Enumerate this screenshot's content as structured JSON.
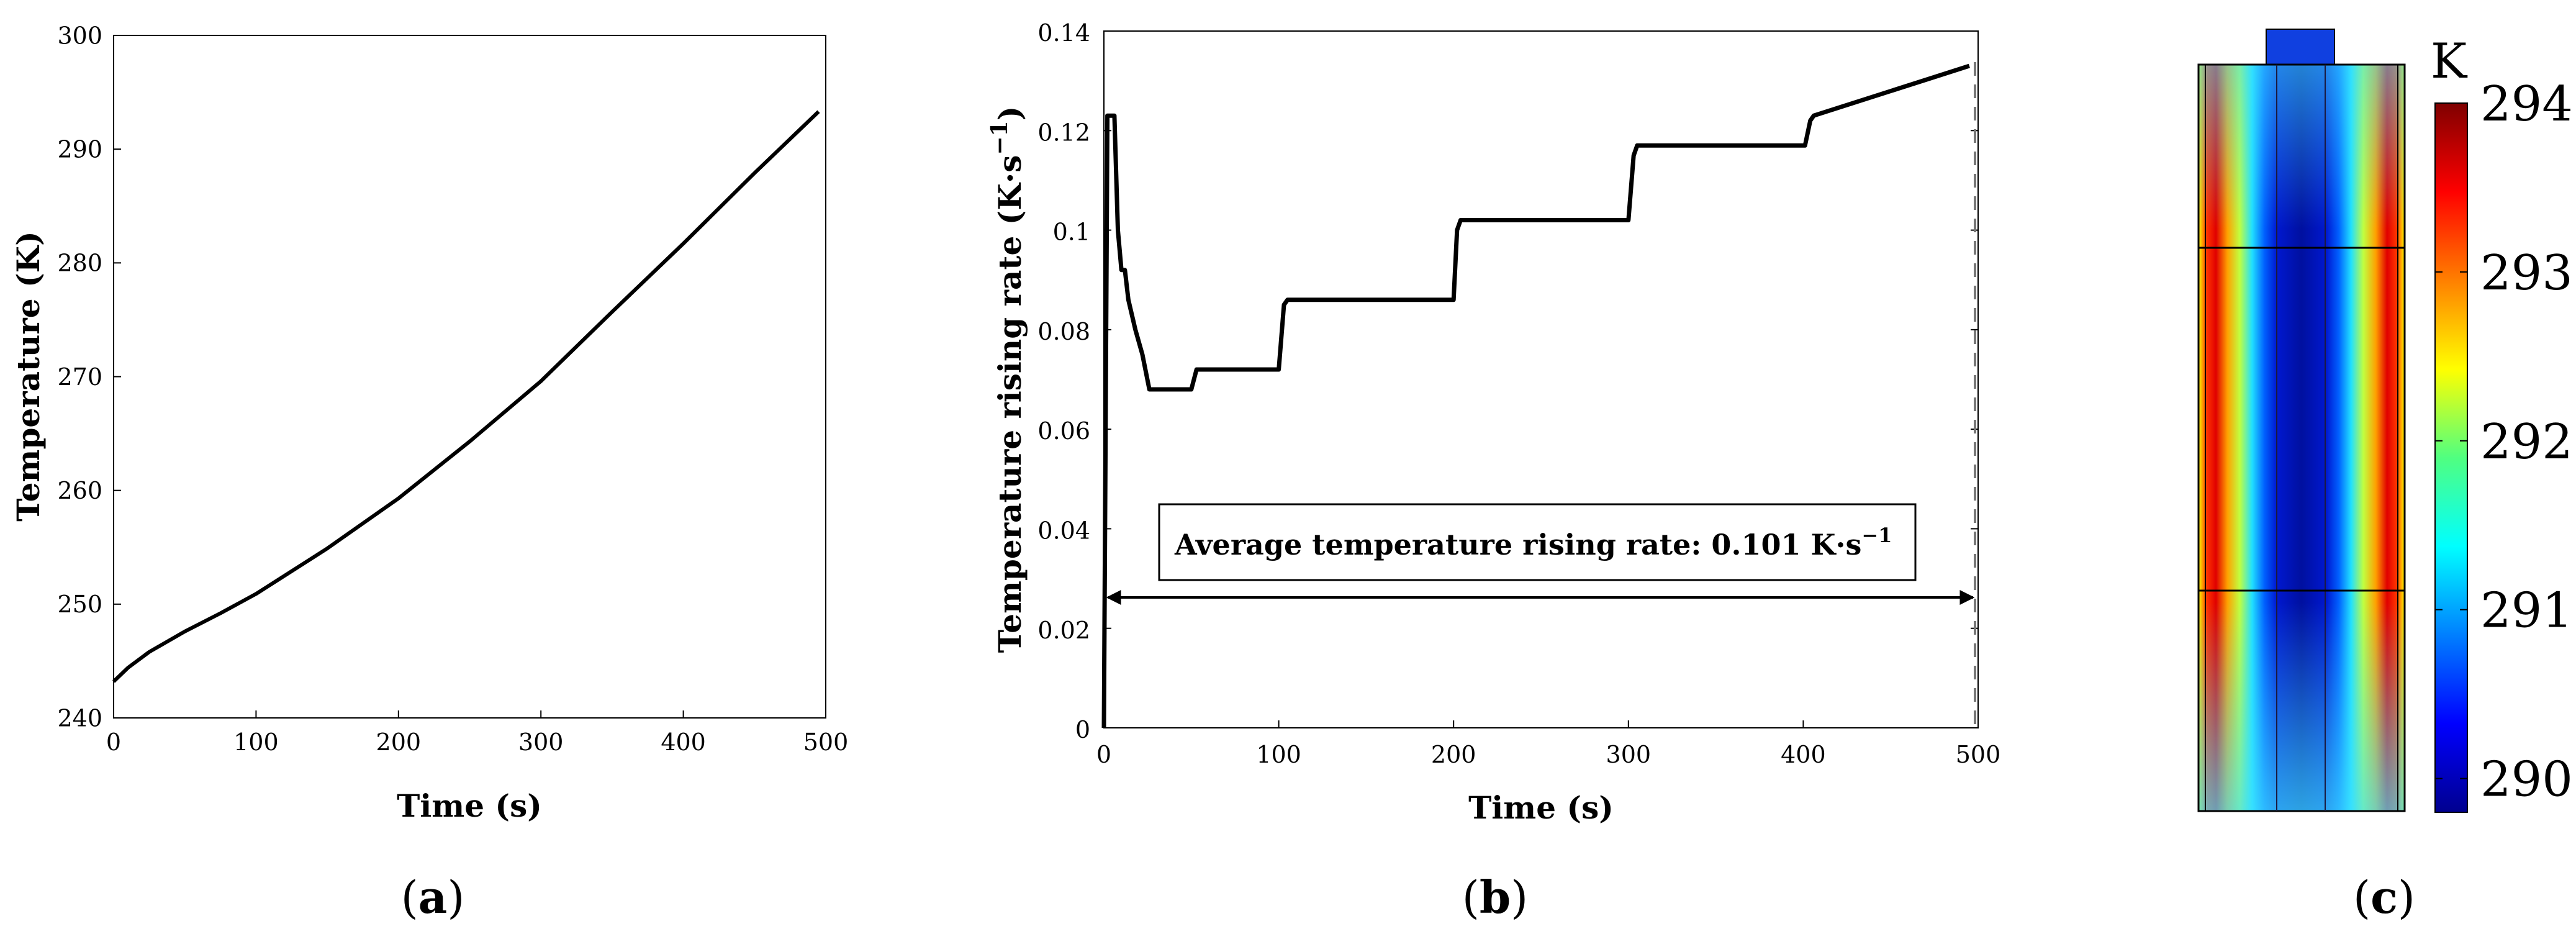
{
  "colors": {
    "ink": "#000000",
    "dashed": "#777777",
    "cold": "#00008F",
    "hot": "#7F0000",
    "cap": "#1040E0"
  },
  "panels": {
    "a": {
      "label": "a",
      "open": "(",
      "close": ")"
    },
    "b": {
      "label": "b",
      "open": "(",
      "close": ")"
    },
    "c": {
      "label": "c",
      "open": "(",
      "close": ")"
    }
  },
  "annotation": {
    "text": "Average temperature rising rate: 0.101 K·s",
    "superscript": "−1"
  },
  "ylabel_b": {
    "main": "Temperature rising rate (K·s",
    "superscript": "−1",
    "close": ")"
  },
  "colorbar": {
    "unit": "K",
    "min": 289.8,
    "max": 294.0,
    "ticks": [
      "294",
      "293",
      "292",
      "291",
      "290"
    ],
    "tick_values": [
      294,
      293,
      292,
      291,
      290
    ]
  },
  "chart_data": [
    {
      "type": "line",
      "panel": "a",
      "title": "",
      "xlabel": "Time (s)",
      "ylabel": "Temperature (K)",
      "xlim": [
        0,
        500
      ],
      "ylim": [
        240,
        300
      ],
      "xticks": [
        0,
        100,
        200,
        300,
        400,
        500
      ],
      "yticks": [
        240,
        250,
        260,
        270,
        280,
        290,
        300
      ],
      "series": [
        {
          "name": "Temperature",
          "x": [
            0,
            10,
            25,
            50,
            75,
            100,
            150,
            200,
            250,
            300,
            350,
            400,
            450,
            495
          ],
          "y": [
            243.2,
            244.4,
            245.8,
            247.6,
            249.2,
            250.9,
            254.9,
            259.3,
            264.3,
            269.6,
            275.7,
            281.7,
            287.9,
            293.3
          ]
        }
      ]
    },
    {
      "type": "line",
      "panel": "b",
      "title": "",
      "xlabel": "Time (s)",
      "ylabel": "Temperature rising rate (K·s−1)",
      "xlim": [
        0,
        500
      ],
      "ylim": [
        0,
        0.14
      ],
      "xticks": [
        0,
        100,
        200,
        300,
        400,
        500
      ],
      "yticks": [
        0,
        0.02,
        0.04,
        0.06,
        0.08,
        0.1,
        0.12,
        0.14
      ],
      "xtick_labels": [
        "0",
        "100",
        "200",
        "300",
        "400",
        "500"
      ],
      "ytick_labels": [
        "0",
        "0.02",
        "0.04",
        "0.06",
        "0.08",
        "0.1",
        "0.12",
        "0.14"
      ],
      "series": [
        {
          "name": "Temperature rising rate",
          "x": [
            0,
            2,
            3,
            6,
            8,
            10,
            12,
            14,
            18,
            22,
            26,
            30,
            35,
            50,
            53,
            100,
            103,
            105,
            200,
            202,
            204,
            300,
            303,
            305,
            401,
            404,
            406,
            495
          ],
          "y": [
            0,
            0.123,
            0.123,
            0.123,
            0.1,
            0.092,
            0.092,
            0.086,
            0.08,
            0.075,
            0.068,
            0.068,
            0.068,
            0.068,
            0.072,
            0.072,
            0.085,
            0.086,
            0.086,
            0.1,
            0.102,
            0.102,
            0.115,
            0.117,
            0.117,
            0.122,
            0.123,
            0.133
          ]
        }
      ],
      "annotations": [
        {
          "text": "Average temperature rising rate: 0.101 K·s−1",
          "arrow_from_x": 0,
          "arrow_to_x": 493,
          "arrow_y": 0.026
        },
        {
          "type": "vline",
          "x": 493,
          "style": "dashed"
        }
      ]
    },
    {
      "type": "heatmap",
      "panel": "c",
      "title": "",
      "colorbar_label": "K",
      "colorbar_ticks": [
        290,
        291,
        292,
        293,
        294
      ],
      "range": [
        289.8,
        294.0
      ]
    }
  ]
}
